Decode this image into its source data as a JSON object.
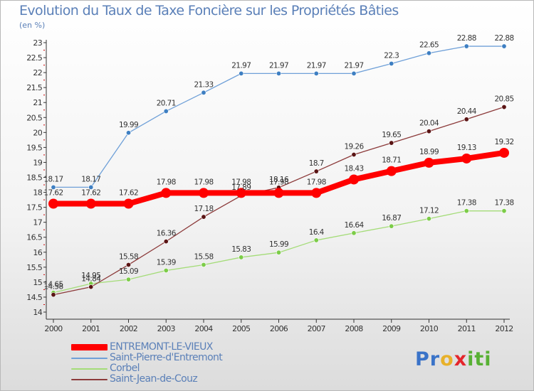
{
  "title": "Evolution du Taux de Taxe Foncière sur les Propriétés Bâties",
  "unit": "(en %)",
  "logo": {
    "text": "Proxiti",
    "letters": [
      "P",
      "r",
      "o",
      "x",
      "i",
      "t",
      "i"
    ],
    "colors": [
      "#3a73c8",
      "#3a73c8",
      "#e8b12a",
      "#e4262c",
      "#58b134",
      "#58b134",
      "#58b134"
    ]
  },
  "chart_data": {
    "type": "line",
    "x": [
      "2000",
      "2001",
      "2002",
      "2003",
      "2004",
      "2005",
      "2006",
      "2007",
      "2008",
      "2009",
      "2010",
      "2011",
      "2012"
    ],
    "ylim": [
      14,
      23
    ],
    "yticks": [
      "14",
      "14.5",
      "15",
      "15.5",
      "16",
      "16.5",
      "17",
      "17.5",
      "18",
      "18.5",
      "19",
      "19.5",
      "20",
      "20.5",
      "21",
      "21.5",
      "22",
      "22.5",
      "23"
    ],
    "grid": false,
    "legend_position": "bottom-left",
    "series": [
      {
        "name": "ENTREMONT-LE-VIEUX",
        "color": "#ff0000",
        "width": 8,
        "marker": 7,
        "values": [
          17.62,
          17.62,
          17.62,
          17.98,
          17.98,
          17.98,
          17.98,
          17.98,
          18.43,
          18.71,
          18.99,
          19.13,
          19.32
        ],
        "labels": [
          "17.62",
          "17.62",
          "17.62",
          "17.98",
          "17.98",
          "17.98",
          "17.98",
          "17.98",
          "18.43",
          "18.71",
          "18.99",
          "19.13",
          "19.32"
        ]
      },
      {
        "name": "Saint-Pierre-d'Entremont",
        "color": "#6fa0d8",
        "marker_color": "#3e7fc2",
        "width": 1.3,
        "marker": 3.2,
        "values": [
          18.17,
          18.17,
          19.99,
          20.71,
          21.33,
          21.97,
          21.97,
          21.97,
          21.97,
          22.3,
          22.65,
          22.88,
          22.88
        ],
        "labels": [
          "18.17",
          "18.17",
          "19.99",
          "20.71",
          "21.33",
          "21.97",
          "21.97",
          "21.97",
          "21.97",
          "22.3",
          "22.65",
          "22.88",
          "22.88"
        ]
      },
      {
        "name": "Corbel",
        "color": "#a4dc78",
        "marker_color": "#7ccc48",
        "width": 1.3,
        "marker": 3.2,
        "values": [
          14.65,
          14.95,
          15.09,
          15.39,
          15.58,
          15.83,
          15.99,
          16.4,
          16.64,
          16.87,
          17.12,
          17.38,
          17.38
        ],
        "labels": [
          "14.65",
          "14.95",
          "15.09",
          "15.39",
          "15.58",
          "15.83",
          "15.99",
          "16.4",
          "16.64",
          "16.87",
          "17.12",
          "17.38",
          "17.38"
        ]
      },
      {
        "name": "Saint-Jean-de-Couz",
        "color": "#8c3a3a",
        "marker_color": "#5a1414",
        "width": 1.3,
        "marker": 3.2,
        "values": [
          14.58,
          14.84,
          15.58,
          16.36,
          17.18,
          17.89,
          18.16,
          18.7,
          19.26,
          19.65,
          20.04,
          20.44,
          20.85
        ],
        "labels": [
          "14.58",
          "14.84",
          "15.58",
          "16.36",
          "17.18",
          "17.89",
          "18.16",
          "18.7",
          "19.26",
          "19.65",
          "20.04",
          "20.44",
          "20.85"
        ]
      }
    ]
  }
}
